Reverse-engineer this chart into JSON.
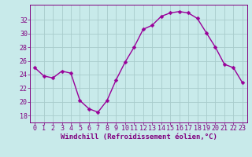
{
  "x": [
    0,
    1,
    2,
    3,
    4,
    5,
    6,
    7,
    8,
    9,
    10,
    11,
    12,
    13,
    14,
    15,
    16,
    17,
    18,
    19,
    20,
    21,
    22,
    23
  ],
  "y": [
    25.0,
    23.8,
    23.5,
    24.5,
    24.2,
    20.2,
    19.0,
    18.5,
    20.2,
    23.2,
    25.8,
    28.0,
    30.6,
    31.2,
    32.5,
    33.0,
    33.2,
    33.0,
    32.2,
    30.1,
    28.0,
    25.5,
    25.0,
    22.8
  ],
  "line_color": "#990099",
  "marker": "D",
  "marker_size": 2.5,
  "bg_color": "#c8eaea",
  "grid_color": "#a8cccc",
  "spine_color": "#800080",
  "tick_color": "#800080",
  "xlabel": "Windchill (Refroidissement éolien,°C)",
  "xlabel_fontsize": 6.5,
  "xlabel_color": "#800080",
  "ylabel_ticks": [
    18,
    20,
    22,
    24,
    26,
    28,
    30,
    32
  ],
  "ylim": [
    17.0,
    34.2
  ],
  "xlim": [
    -0.5,
    23.5
  ],
  "tick_fontsize": 6.0,
  "linewidth": 1.0
}
